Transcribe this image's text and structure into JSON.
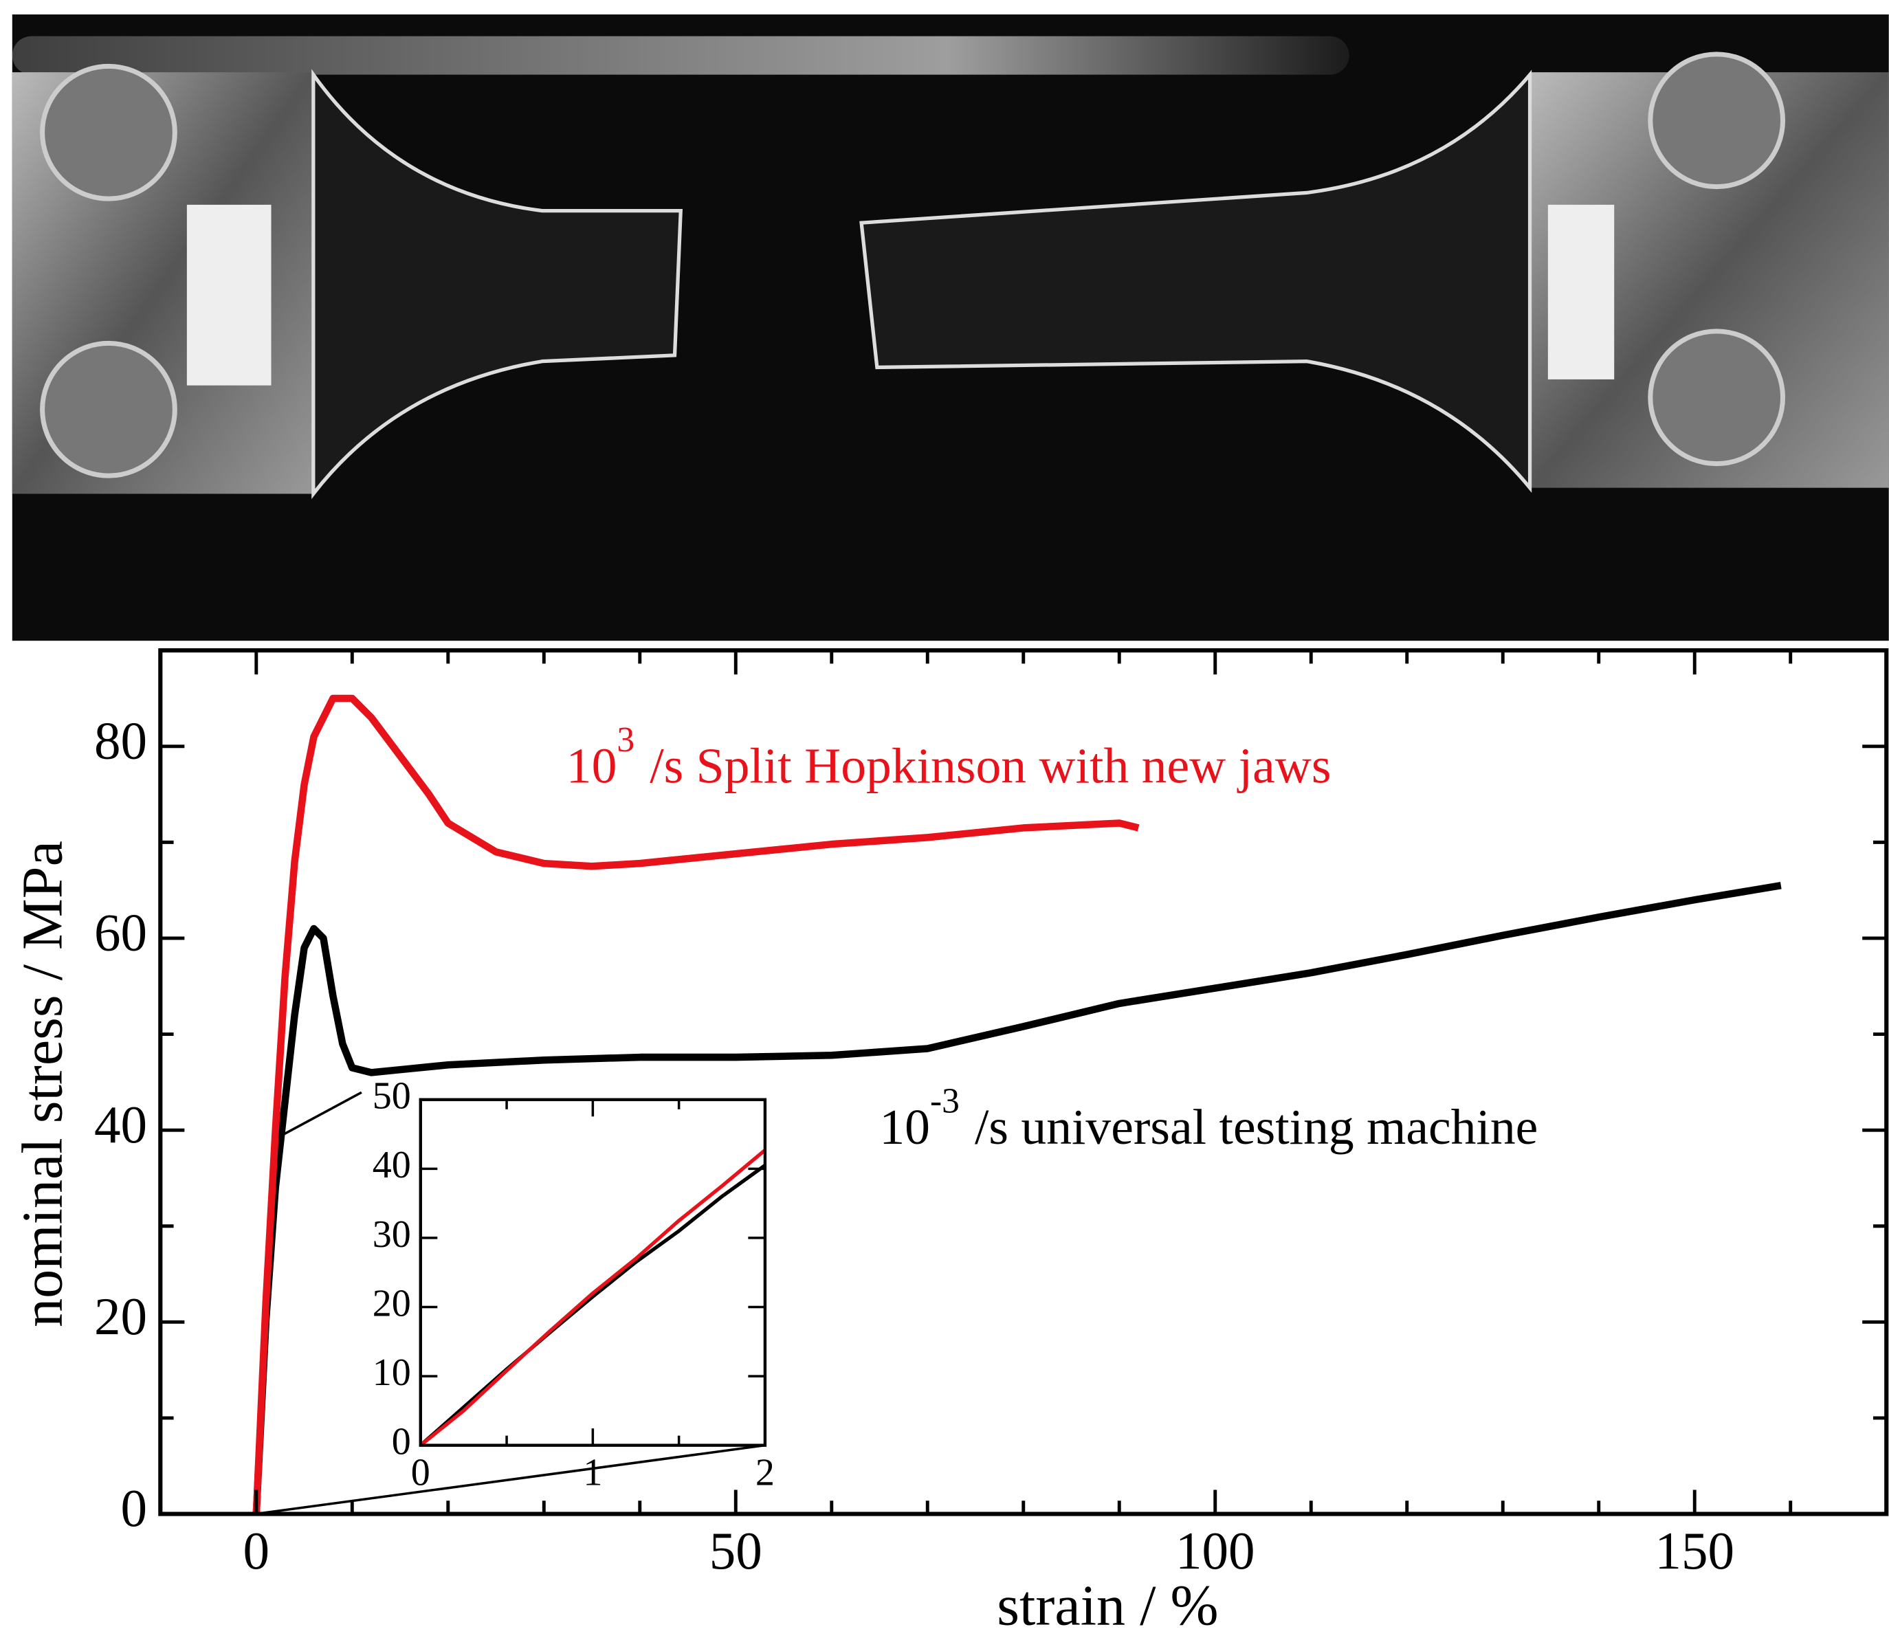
{
  "chart_data": [
    {
      "type": "line",
      "xlabel": "strain / %",
      "ylabel": "nominal stress / MPa",
      "xlim": [
        -10,
        170
      ],
      "ylim": [
        0,
        90
      ],
      "xticks": [
        0,
        50,
        100,
        150
      ],
      "yticks": [
        0,
        20,
        40,
        60,
        80
      ],
      "xminorticks": [
        10,
        20,
        30,
        40,
        60,
        70,
        80,
        90,
        110,
        120,
        130,
        140,
        160
      ],
      "yminorticks": [
        10,
        30,
        50,
        70
      ],
      "series": [
        {
          "color": "#000000",
          "x": [
            0,
            1,
            2,
            3,
            4,
            5,
            6,
            7,
            8,
            9,
            10,
            12,
            15,
            20,
            30,
            40,
            50,
            60,
            70,
            80,
            90,
            100,
            110,
            120,
            130,
            140,
            150,
            159
          ],
          "values": [
            0,
            20,
            34,
            43,
            52,
            59,
            61,
            60,
            54,
            49,
            46.5,
            46,
            46.3,
            46.8,
            47.3,
            47.6,
            47.6,
            47.8,
            48.5,
            50.8,
            53.2,
            54.8,
            56.4,
            58.3,
            60.3,
            62.2,
            64,
            65.5
          ]
        },
        {
          "color": "#e8121a",
          "x": [
            0,
            1,
            2,
            3,
            4,
            5,
            6,
            8,
            10,
            12,
            15,
            18,
            20,
            25,
            30,
            35,
            40,
            50,
            60,
            70,
            80,
            90,
            92
          ],
          "values": [
            0,
            22,
            40,
            56,
            68,
            76,
            81,
            85,
            85,
            83,
            79,
            75,
            72,
            69,
            67.8,
            67.5,
            67.8,
            68.8,
            69.8,
            70.5,
            71.5,
            72,
            71.5
          ]
        }
      ],
      "annotations": [
        {
          "base": "10",
          "sup": "3",
          "text": "/s Split Hopkinson with new jaws",
          "color": "#e8121a"
        },
        {
          "base": "10",
          "sup": "-3",
          "text": "/s universal testing machine",
          "color": "#000000"
        }
      ]
    },
    {
      "type": "line",
      "xlim": [
        0,
        2
      ],
      "ylim": [
        0,
        50
      ],
      "xticks": [
        0,
        1,
        2
      ],
      "yticks": [
        0,
        10,
        20,
        30,
        40,
        50
      ],
      "xminorticks": [
        0.5,
        1.5
      ],
      "yminorticks": [],
      "series": [
        {
          "color": "#000000",
          "x": [
            0,
            0.25,
            0.5,
            0.75,
            1,
            1.25,
            1.5,
            1.75,
            2
          ],
          "values": [
            0,
            5.5,
            11,
            16.3,
            21.5,
            26.5,
            31,
            36,
            40.5
          ]
        },
        {
          "color": "#e8121a",
          "x": [
            0,
            0.25,
            0.5,
            0.75,
            1,
            1.25,
            1.5,
            1.75,
            2
          ],
          "values": [
            0,
            5,
            10.8,
            16.5,
            22,
            27,
            32.5,
            37.5,
            42.7
          ]
        }
      ],
      "annotations": []
    }
  ]
}
